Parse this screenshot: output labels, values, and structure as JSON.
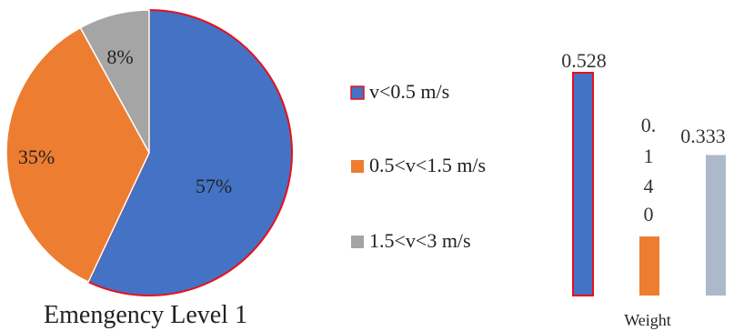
{
  "chart_data": [
    {
      "type": "pie",
      "title": "Emengency Level 1",
      "categories": [
        "v<0.5 m/s",
        "0.5<v<1.5 m/s",
        "1.5<v<3 m/s"
      ],
      "values": [
        57,
        35,
        8
      ],
      "labels": [
        "57%",
        "35%",
        "8%"
      ],
      "colors": [
        "#4472C4",
        "#ED7D31",
        "#A5A5A5"
      ],
      "highlight_stroke": "#E8101A",
      "legend": "right"
    },
    {
      "type": "bar",
      "xlabel": "Weight",
      "values": [
        0.528,
        0.14,
        0.333
      ],
      "labels": [
        "0.528",
        "0.140",
        "0.333"
      ],
      "colors": [
        "#4472C4",
        "#ED7D31",
        "#ADB9CA"
      ],
      "highlight_stroke": "#E8101A",
      "ylim": [
        0,
        0.528
      ]
    }
  ]
}
